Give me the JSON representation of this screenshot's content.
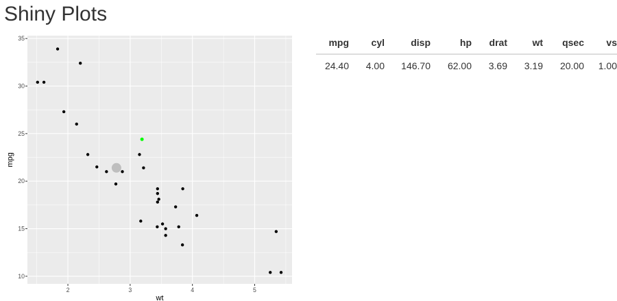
{
  "page": {
    "title": "Shiny Plots"
  },
  "table": {
    "columns": [
      "mpg",
      "cyl",
      "disp",
      "hp",
      "drat",
      "wt",
      "qsec",
      "vs"
    ],
    "rows": [
      [
        "24.40",
        "4.00",
        "146.70",
        "62.00",
        "3.69",
        "3.19",
        "20.00",
        "1.00"
      ]
    ]
  },
  "chart_data": {
    "type": "scatter",
    "title": "",
    "xlabel": "wt",
    "ylabel": "mpg",
    "xlim": [
      1.35,
      5.6
    ],
    "ylim": [
      9.2,
      35.3
    ],
    "x_ticks": [
      2,
      3,
      4,
      5
    ],
    "y_ticks": [
      10,
      15,
      20,
      25,
      30,
      35
    ],
    "grid": true,
    "legend": "none",
    "colors": {
      "panel": "#EBEBEB",
      "grid": "#FFFFFF",
      "point": "#000000",
      "selected": "#00FF00",
      "hover": "#BEBEBE"
    },
    "series": [
      {
        "x": [
          2.62,
          2.875,
          2.32,
          3.215,
          3.44,
          3.46,
          3.57,
          3.19,
          3.15,
          3.44,
          3.44,
          4.07,
          3.73,
          3.78,
          5.25,
          5.424,
          5.345,
          2.2,
          1.615,
          1.835,
          2.465,
          3.52,
          3.435,
          3.84,
          3.845,
          1.935,
          2.14,
          1.513,
          3.17,
          2.77,
          3.57,
          2.78
        ],
        "y": [
          21.0,
          21.0,
          22.8,
          21.4,
          18.7,
          18.1,
          14.3,
          24.4,
          22.8,
          19.2,
          17.8,
          16.4,
          17.3,
          15.2,
          10.4,
          10.4,
          14.7,
          32.4,
          30.4,
          33.9,
          21.5,
          15.5,
          15.2,
          13.3,
          19.2,
          27.3,
          26.0,
          30.4,
          15.8,
          19.7,
          15.0,
          21.4
        ]
      }
    ],
    "highlighted": [
      {
        "x": 3.19,
        "y": 24.4,
        "role": "selected"
      },
      {
        "x": 2.78,
        "y": 21.4,
        "role": "hover"
      }
    ]
  }
}
